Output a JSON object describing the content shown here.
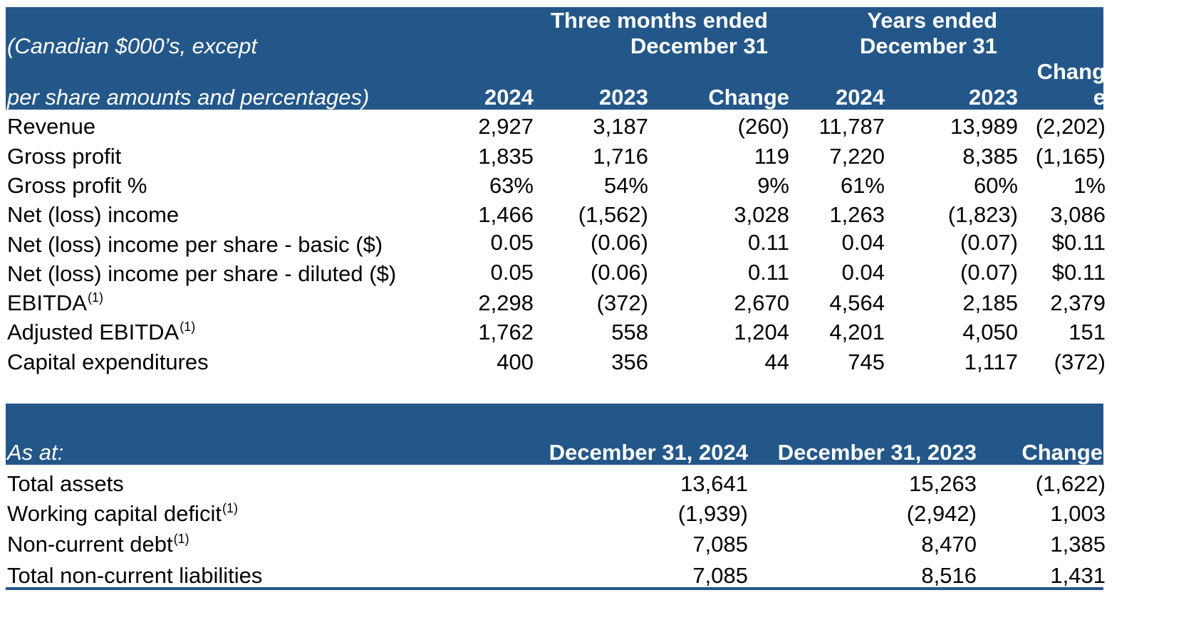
{
  "colors": {
    "header_band": "#245789",
    "header_text": "#ffffff",
    "body_text": "#000000"
  },
  "table1": {
    "unit_note_line1": "(Canadian $000’s, except",
    "unit_note_line2": "per share amounts and percentages)",
    "group_three_months": [
      "Three months ended",
      "December 31"
    ],
    "group_years": [
      "Years ended",
      "December 31"
    ],
    "change_wrap": [
      "Chang",
      "e"
    ],
    "col_2024": "2024",
    "col_2023": "2023",
    "col_change": "Change",
    "rows": [
      {
        "label": "Revenue",
        "sup": "",
        "values": [
          "2,927",
          "3,187",
          "(260)",
          "11,787",
          "13,989",
          "(2,202)"
        ]
      },
      {
        "label": "Gross profit",
        "sup": "",
        "values": [
          "1,835",
          "1,716",
          "119",
          "7,220",
          "8,385",
          "(1,165)"
        ]
      },
      {
        "label": "Gross profit %",
        "sup": "",
        "values": [
          "63%",
          "54%",
          "9%",
          "61%",
          "60%",
          "1%"
        ]
      },
      {
        "label": "Net (loss) income",
        "sup": "",
        "values": [
          "1,466",
          "(1,562)",
          "3,028",
          "1,263",
          "(1,823)",
          "3,086"
        ]
      },
      {
        "label": "Net (loss) income per share - basic ($)",
        "sup": "",
        "values": [
          "0.05",
          "(0.06)",
          "0.11",
          "0.04",
          "(0.07)",
          "$0.11"
        ]
      },
      {
        "label": "Net (loss) income per share - diluted ($)",
        "sup": "",
        "values": [
          "0.05",
          "(0.06)",
          "0.11",
          "0.04",
          "(0.07)",
          "$0.11"
        ]
      },
      {
        "label": "EBITDA",
        "sup": "(1)",
        "values": [
          "2,298",
          "(372)",
          "2,670",
          "4,564",
          "2,185",
          "2,379"
        ]
      },
      {
        "label": "Adjusted EBITDA",
        "sup": "(1)",
        "values": [
          "1,762",
          "558",
          "1,204",
          "4,201",
          "4,050",
          "151"
        ]
      },
      {
        "label": "Capital expenditures",
        "sup": "",
        "values": [
          "400",
          "356",
          "44",
          "745",
          "1,117",
          "(372)"
        ]
      }
    ]
  },
  "table2": {
    "as_at": "As at:",
    "col_dec2024": "December 31, 2024",
    "col_dec2023": "December 31, 2023",
    "col_change": "Change",
    "rows": [
      {
        "label": "Total assets",
        "sup": "",
        "values": [
          "13,641",
          "15,263",
          "(1,622)"
        ]
      },
      {
        "label": "Working capital deficit",
        "sup": "(1)",
        "values": [
          "(1,939)",
          "(2,942)",
          "1,003"
        ]
      },
      {
        "label": "Non-current debt",
        "sup": "(1)",
        "values": [
          "7,085",
          "8,470",
          "1,385"
        ]
      },
      {
        "label": "Total non-current liabilities",
        "sup": "",
        "values": [
          "7,085",
          "8,516",
          "1,431"
        ]
      }
    ]
  }
}
